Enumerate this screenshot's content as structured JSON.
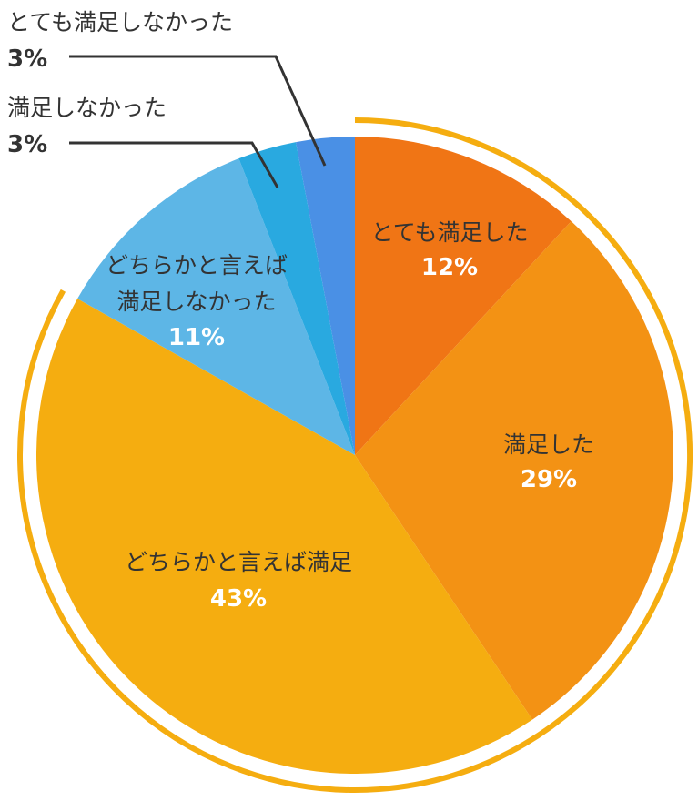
{
  "chart_data": {
    "type": "pie",
    "slices": [
      {
        "label": "とても満足した",
        "value": 12,
        "value_label": "12%",
        "color": "#F07515"
      },
      {
        "label": "満足した",
        "value": 29,
        "value_label": "29%",
        "color": "#F39214"
      },
      {
        "label": "どちらかと言えば満足",
        "value": 43,
        "value_label": "43%",
        "color": "#F5AD10"
      },
      {
        "label": "どちらかと言えば満足しなかった",
        "value": 11,
        "value_label": "11%",
        "color": "#5DB6E6"
      },
      {
        "label": "満足しなかった",
        "value": 3,
        "value_label": "3%",
        "color": "#29A9E0"
      },
      {
        "label": "とても満足しなかった",
        "value": 3,
        "value_label": "3%",
        "color": "#4A90E5"
      }
    ],
    "highlight_arc": {
      "color": "#F5AD10",
      "covers": [
        "とても満足した",
        "満足した",
        "どちらかと言えば満足"
      ]
    },
    "leader_color": "#333333"
  }
}
